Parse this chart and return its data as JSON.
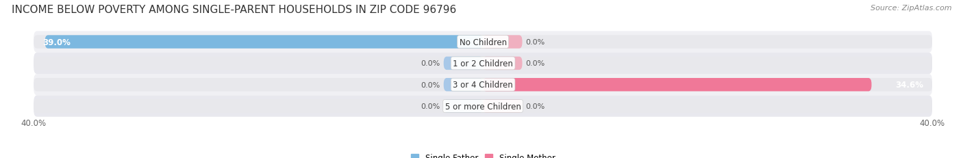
{
  "title": "INCOME BELOW POVERTY AMONG SINGLE-PARENT HOUSEHOLDS IN ZIP CODE 96796",
  "source": "Source: ZipAtlas.com",
  "categories": [
    "No Children",
    "1 or 2 Children",
    "3 or 4 Children",
    "5 or more Children"
  ],
  "single_father": [
    39.0,
    0.0,
    0.0,
    0.0
  ],
  "single_mother": [
    0.0,
    0.0,
    34.6,
    0.0
  ],
  "father_color": "#7cb8e0",
  "mother_color": "#f07898",
  "bar_bg_color": "#e8e8ec",
  "row_bg_odd": "#f0f0f4",
  "row_bg_even": "#e8e8ee",
  "axis_max": 40.0,
  "title_fontsize": 11,
  "label_fontsize": 8,
  "tick_fontsize": 8.5,
  "category_fontsize": 8.5,
  "source_fontsize": 8,
  "background_color": "#ffffff",
  "bar_height": 0.62,
  "small_father_color": "#a8c8e8",
  "small_mother_color": "#f0b0c0"
}
